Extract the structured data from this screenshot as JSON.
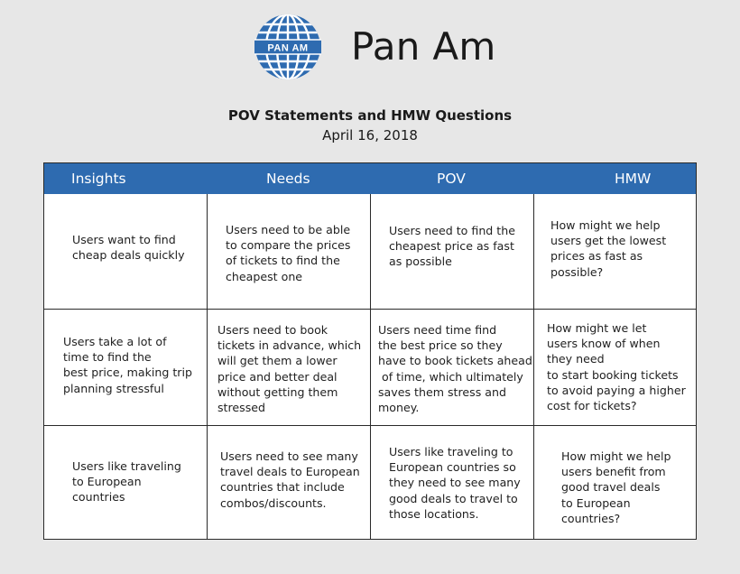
{
  "header": {
    "brand_name": "Pan Am",
    "logo_text": "PAN AM",
    "title": "POV Statements and HMW Questions",
    "date": "April 16, 2018"
  },
  "colors": {
    "header_blue": "#2e6bb0",
    "logo_blue": "#2e6bb0",
    "background": "#e7e7e7"
  },
  "table": {
    "columns": [
      "Insights",
      "Needs",
      "POV",
      "HMW"
    ],
    "rows": [
      [
        "Users want to find\ncheap deals quickly",
        "Users need to be able\nto compare the prices\nof tickets to find the\ncheapest one",
        "Users need to find the\ncheapest price as fast\nas possible",
        "How might we help\nusers get the lowest\nprices as fast as\npossible?"
      ],
      [
        "Users take a lot of\ntime to find the\nbest price, making trip\nplanning stressful",
        "Users need to book\ntickets in advance, which\nwill get them a lower\nprice and better deal\nwithout getting them\nstressed",
        "Users need time find\nthe best price so they\nhave to book tickets ahead\n of time, which ultimately\nsaves them stress and\nmoney.",
        "How might we let\nusers know of when\nthey need\nto start booking tickets\nto avoid paying a higher\ncost for tickets?"
      ],
      [
        "Users like traveling\nto European\ncountries",
        "Users need to see many\ntravel deals to European\ncountries that include\ncombos/discounts.",
        "Users like traveling to\nEuropean countries so\nthey need to see many\ngood deals to travel to\nthose locations.",
        "How might we help\nusers benefit from\ngood travel deals\nto European\ncountries?"
      ]
    ]
  }
}
